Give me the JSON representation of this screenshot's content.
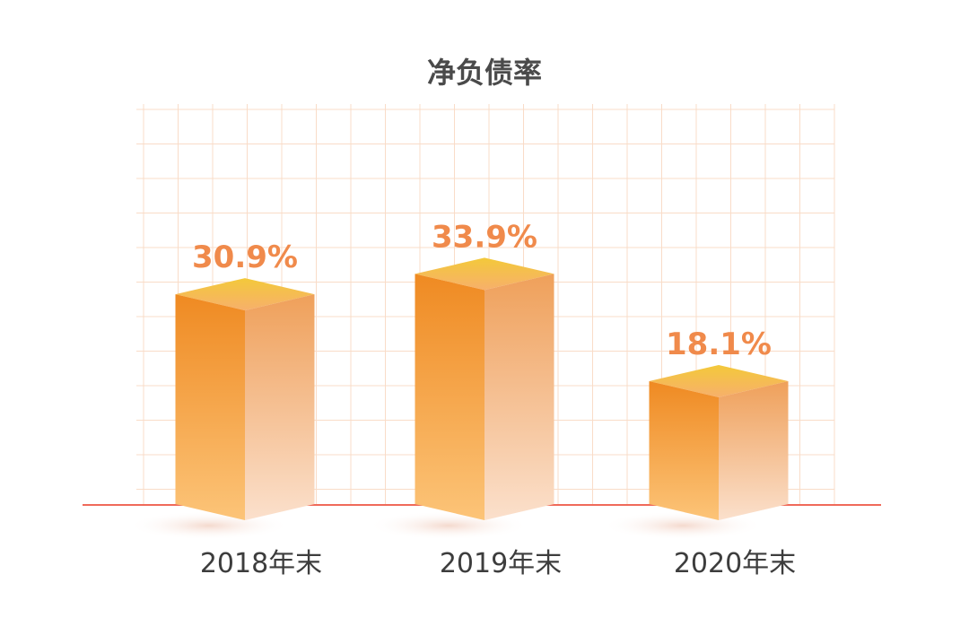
{
  "chart_data": {
    "type": "bar",
    "title": "净负债率",
    "categories": [
      "2018年末",
      "2019年末",
      "2020年末"
    ],
    "values": [
      30.9,
      33.9,
      18.1
    ],
    "value_labels": [
      "30.9%",
      "33.9%",
      "18.1%"
    ],
    "xlabel": "",
    "ylabel": "",
    "ylim": [
      0,
      40
    ],
    "grid": true,
    "legend": "none"
  },
  "colors": {
    "grid": "#f9dcc8",
    "baseline": "#ef6a5a",
    "label": "#f08a4b",
    "bar_top": "#ef8a22",
    "bar_bottom": "#fcc478",
    "bar_side_top": "#efa05a",
    "bar_side_bottom": "#fbe0cc",
    "bar_cap_light": "#f7b06b",
    "bar_cap_dark": "#f3c93a"
  }
}
